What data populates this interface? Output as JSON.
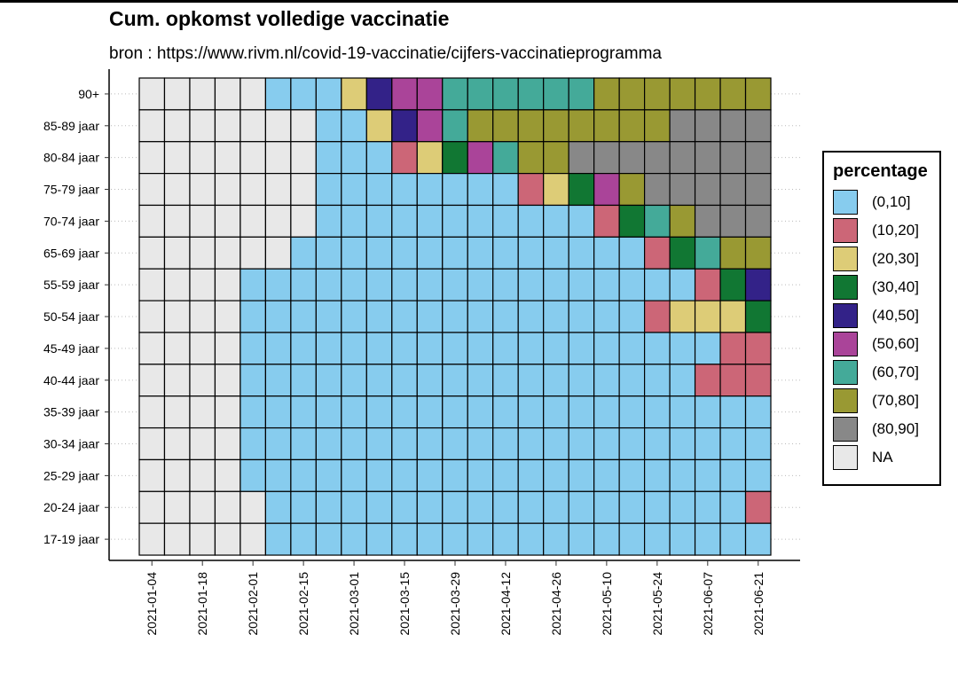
{
  "title": "Cum. opkomst volledige vaccinatie",
  "subtitle": "bron : https://www.rivm.nl/covid-19-vaccinatie/cijfers-vaccinatieprogramma",
  "legend": {
    "title": "percentage",
    "items": [
      {
        "label": "(0,10]",
        "color": "#87CCEE"
      },
      {
        "label": "(10,20]",
        "color": "#CC6677"
      },
      {
        "label": "(20,30]",
        "color": "#DDCC77"
      },
      {
        "label": "(30,40]",
        "color": "#117733"
      },
      {
        "label": "(40,50]",
        "color": "#332288"
      },
      {
        "label": "(50,60]",
        "color": "#AA4499"
      },
      {
        "label": "(60,70]",
        "color": "#44AA99"
      },
      {
        "label": "(70,80]",
        "color": "#999933"
      },
      {
        "label": "(80,90]",
        "color": "#888888"
      },
      {
        "label": "NA",
        "color": "#E8E8E8"
      }
    ]
  },
  "chart_data": {
    "type": "heatmap",
    "title": "Cum. opkomst volledige vaccinatie",
    "subtitle": "bron : https://www.rivm.nl/covid-19-vaccinatie/cijfers-vaccinatieprogramma",
    "xlabel": "",
    "ylabel": "",
    "legend_title": "percentage",
    "legend_position": "right",
    "x": [
      "2021-01-04",
      "2021-01-11",
      "2021-01-18",
      "2021-01-25",
      "2021-02-01",
      "2021-02-08",
      "2021-02-15",
      "2021-02-22",
      "2021-03-01",
      "2021-03-08",
      "2021-03-15",
      "2021-03-22",
      "2021-03-29",
      "2021-04-05",
      "2021-04-12",
      "2021-04-19",
      "2021-04-26",
      "2021-05-03",
      "2021-05-10",
      "2021-05-17",
      "2021-05-24",
      "2021-05-31",
      "2021-06-07",
      "2021-06-14",
      "2021-06-21"
    ],
    "x_ticks": [
      "2021-01-04",
      "2021-01-18",
      "2021-02-01",
      "2021-02-15",
      "2021-03-01",
      "2021-03-15",
      "2021-03-29",
      "2021-04-12",
      "2021-04-26",
      "2021-05-10",
      "2021-05-24",
      "2021-06-07",
      "2021-06-21"
    ],
    "y": [
      "90+",
      "85-89 jaar",
      "80-84 jaar",
      "75-79 jaar",
      "70-74 jaar",
      "65-69 jaar",
      "55-59 jaar",
      "50-54 jaar",
      "45-49 jaar",
      "40-44 jaar",
      "35-39 jaar",
      "30-34 jaar",
      "25-29 jaar",
      "20-24 jaar",
      "17-19 jaar"
    ],
    "categories": [
      "(0,10]",
      "(10,20]",
      "(20,30]",
      "(30,40]",
      "(40,50]",
      "(50,60]",
      "(60,70]",
      "(70,80]",
      "(80,90]",
      "NA"
    ],
    "values": [
      [
        "NA",
        "NA",
        "NA",
        "NA",
        "NA",
        "(0,10]",
        "(0,10]",
        "(0,10]",
        "(20,30]",
        "(40,50]",
        "(50,60]",
        "(50,60]",
        "(60,70]",
        "(60,70]",
        "(60,70]",
        "(60,70]",
        "(60,70]",
        "(60,70]",
        "(70,80]",
        "(70,80]",
        "(70,80]",
        "(70,80]",
        "(70,80]",
        "(70,80]",
        "(70,80]"
      ],
      [
        "NA",
        "NA",
        "NA",
        "NA",
        "NA",
        "NA",
        "NA",
        "(0,10]",
        "(0,10]",
        "(20,30]",
        "(40,50]",
        "(50,60]",
        "(60,70]",
        "(70,80]",
        "(70,80]",
        "(70,80]",
        "(70,80]",
        "(70,80]",
        "(70,80]",
        "(70,80]",
        "(70,80]",
        "(80,90]",
        "(80,90]",
        "(80,90]",
        "(80,90]"
      ],
      [
        "NA",
        "NA",
        "NA",
        "NA",
        "NA",
        "NA",
        "NA",
        "(0,10]",
        "(0,10]",
        "(0,10]",
        "(10,20]",
        "(20,30]",
        "(30,40]",
        "(50,60]",
        "(60,70]",
        "(70,80]",
        "(70,80]",
        "(80,90]",
        "(80,90]",
        "(80,90]",
        "(80,90]",
        "(80,90]",
        "(80,90]",
        "(80,90]",
        "(80,90]"
      ],
      [
        "NA",
        "NA",
        "NA",
        "NA",
        "NA",
        "NA",
        "NA",
        "(0,10]",
        "(0,10]",
        "(0,10]",
        "(0,10]",
        "(0,10]",
        "(0,10]",
        "(0,10]",
        "(0,10]",
        "(10,20]",
        "(20,30]",
        "(30,40]",
        "(50,60]",
        "(70,80]",
        "(80,90]",
        "(80,90]",
        "(80,90]",
        "(80,90]",
        "(80,90]"
      ],
      [
        "NA",
        "NA",
        "NA",
        "NA",
        "NA",
        "NA",
        "NA",
        "(0,10]",
        "(0,10]",
        "(0,10]",
        "(0,10]",
        "(0,10]",
        "(0,10]",
        "(0,10]",
        "(0,10]",
        "(0,10]",
        "(0,10]",
        "(0,10]",
        "(10,20]",
        "(30,40]",
        "(60,70]",
        "(70,80]",
        "(80,90]",
        "(80,90]",
        "(80,90]"
      ],
      [
        "NA",
        "NA",
        "NA",
        "NA",
        "NA",
        "NA",
        "(0,10]",
        "(0,10]",
        "(0,10]",
        "(0,10]",
        "(0,10]",
        "(0,10]",
        "(0,10]",
        "(0,10]",
        "(0,10]",
        "(0,10]",
        "(0,10]",
        "(0,10]",
        "(0,10]",
        "(0,10]",
        "(10,20]",
        "(30,40]",
        "(60,70]",
        "(70,80]",
        "(70,80]"
      ],
      [
        "NA",
        "NA",
        "NA",
        "NA",
        "(0,10]",
        "(0,10]",
        "(0,10]",
        "(0,10]",
        "(0,10]",
        "(0,10]",
        "(0,10]",
        "(0,10]",
        "(0,10]",
        "(0,10]",
        "(0,10]",
        "(0,10]",
        "(0,10]",
        "(0,10]",
        "(0,10]",
        "(0,10]",
        "(0,10]",
        "(0,10]",
        "(10,20]",
        "(30,40]",
        "(40,50]"
      ],
      [
        "NA",
        "NA",
        "NA",
        "NA",
        "(0,10]",
        "(0,10]",
        "(0,10]",
        "(0,10]",
        "(0,10]",
        "(0,10]",
        "(0,10]",
        "(0,10]",
        "(0,10]",
        "(0,10]",
        "(0,10]",
        "(0,10]",
        "(0,10]",
        "(0,10]",
        "(0,10]",
        "(0,10]",
        "(10,20]",
        "(20,30]",
        "(20,30]",
        "(20,30]",
        "(30,40]"
      ],
      [
        "NA",
        "NA",
        "NA",
        "NA",
        "(0,10]",
        "(0,10]",
        "(0,10]",
        "(0,10]",
        "(0,10]",
        "(0,10]",
        "(0,10]",
        "(0,10]",
        "(0,10]",
        "(0,10]",
        "(0,10]",
        "(0,10]",
        "(0,10]",
        "(0,10]",
        "(0,10]",
        "(0,10]",
        "(0,10]",
        "(0,10]",
        "(0,10]",
        "(10,20]",
        "(10,20]"
      ],
      [
        "NA",
        "NA",
        "NA",
        "NA",
        "(0,10]",
        "(0,10]",
        "(0,10]",
        "(0,10]",
        "(0,10]",
        "(0,10]",
        "(0,10]",
        "(0,10]",
        "(0,10]",
        "(0,10]",
        "(0,10]",
        "(0,10]",
        "(0,10]",
        "(0,10]",
        "(0,10]",
        "(0,10]",
        "(0,10]",
        "(0,10]",
        "(10,20]",
        "(10,20]",
        "(10,20]"
      ],
      [
        "NA",
        "NA",
        "NA",
        "NA",
        "(0,10]",
        "(0,10]",
        "(0,10]",
        "(0,10]",
        "(0,10]",
        "(0,10]",
        "(0,10]",
        "(0,10]",
        "(0,10]",
        "(0,10]",
        "(0,10]",
        "(0,10]",
        "(0,10]",
        "(0,10]",
        "(0,10]",
        "(0,10]",
        "(0,10]",
        "(0,10]",
        "(0,10]",
        "(0,10]",
        "(0,10]"
      ],
      [
        "NA",
        "NA",
        "NA",
        "NA",
        "(0,10]",
        "(0,10]",
        "(0,10]",
        "(0,10]",
        "(0,10]",
        "(0,10]",
        "(0,10]",
        "(0,10]",
        "(0,10]",
        "(0,10]",
        "(0,10]",
        "(0,10]",
        "(0,10]",
        "(0,10]",
        "(0,10]",
        "(0,10]",
        "(0,10]",
        "(0,10]",
        "(0,10]",
        "(0,10]",
        "(0,10]"
      ],
      [
        "NA",
        "NA",
        "NA",
        "NA",
        "(0,10]",
        "(0,10]",
        "(0,10]",
        "(0,10]",
        "(0,10]",
        "(0,10]",
        "(0,10]",
        "(0,10]",
        "(0,10]",
        "(0,10]",
        "(0,10]",
        "(0,10]",
        "(0,10]",
        "(0,10]",
        "(0,10]",
        "(0,10]",
        "(0,10]",
        "(0,10]",
        "(0,10]",
        "(0,10]",
        "(0,10]"
      ],
      [
        "NA",
        "NA",
        "NA",
        "NA",
        "NA",
        "(0,10]",
        "(0,10]",
        "(0,10]",
        "(0,10]",
        "(0,10]",
        "(0,10]",
        "(0,10]",
        "(0,10]",
        "(0,10]",
        "(0,10]",
        "(0,10]",
        "(0,10]",
        "(0,10]",
        "(0,10]",
        "(0,10]",
        "(0,10]",
        "(0,10]",
        "(0,10]",
        "(0,10]",
        "(10,20]"
      ],
      [
        "NA",
        "NA",
        "NA",
        "NA",
        "NA",
        "(0,10]",
        "(0,10]",
        "(0,10]",
        "(0,10]",
        "(0,10]",
        "(0,10]",
        "(0,10]",
        "(0,10]",
        "(0,10]",
        "(0,10]",
        "(0,10]",
        "(0,10]",
        "(0,10]",
        "(0,10]",
        "(0,10]",
        "(0,10]",
        "(0,10]",
        "(0,10]",
        "(0,10]",
        "(0,10]"
      ]
    ],
    "grid": true
  }
}
